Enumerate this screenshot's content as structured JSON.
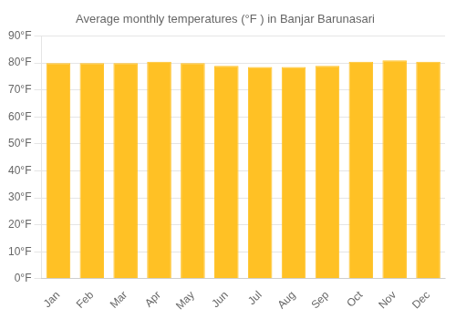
{
  "chart_data": {
    "type": "bar",
    "title": "Average monthly temperatures (°F ) in Banjar Barunasari",
    "categories": [
      "Jan",
      "Feb",
      "Mar",
      "Apr",
      "May",
      "Jun",
      "Jul",
      "Aug",
      "Sep",
      "Oct",
      "Nov",
      "Dec"
    ],
    "values": [
      80.0,
      80.0,
      80.0,
      80.5,
      80.0,
      79.0,
      78.5,
      78.5,
      79.0,
      80.5,
      81.0,
      80.5
    ],
    "color": "#FFC125",
    "ylim": [
      0,
      90
    ],
    "yticks": [
      {
        "value": 0,
        "label": "0°F"
      },
      {
        "value": 10,
        "label": "10°F"
      },
      {
        "value": 20,
        "label": "20°F"
      },
      {
        "value": 30,
        "label": "30°F"
      },
      {
        "value": 40,
        "label": "40°F"
      },
      {
        "value": 50,
        "label": "50°F"
      },
      {
        "value": 60,
        "label": "60°F"
      },
      {
        "value": 70,
        "label": "70°F"
      },
      {
        "value": 80,
        "label": "80°F"
      },
      {
        "value": 90,
        "label": "90°F"
      }
    ],
    "grid": true
  }
}
